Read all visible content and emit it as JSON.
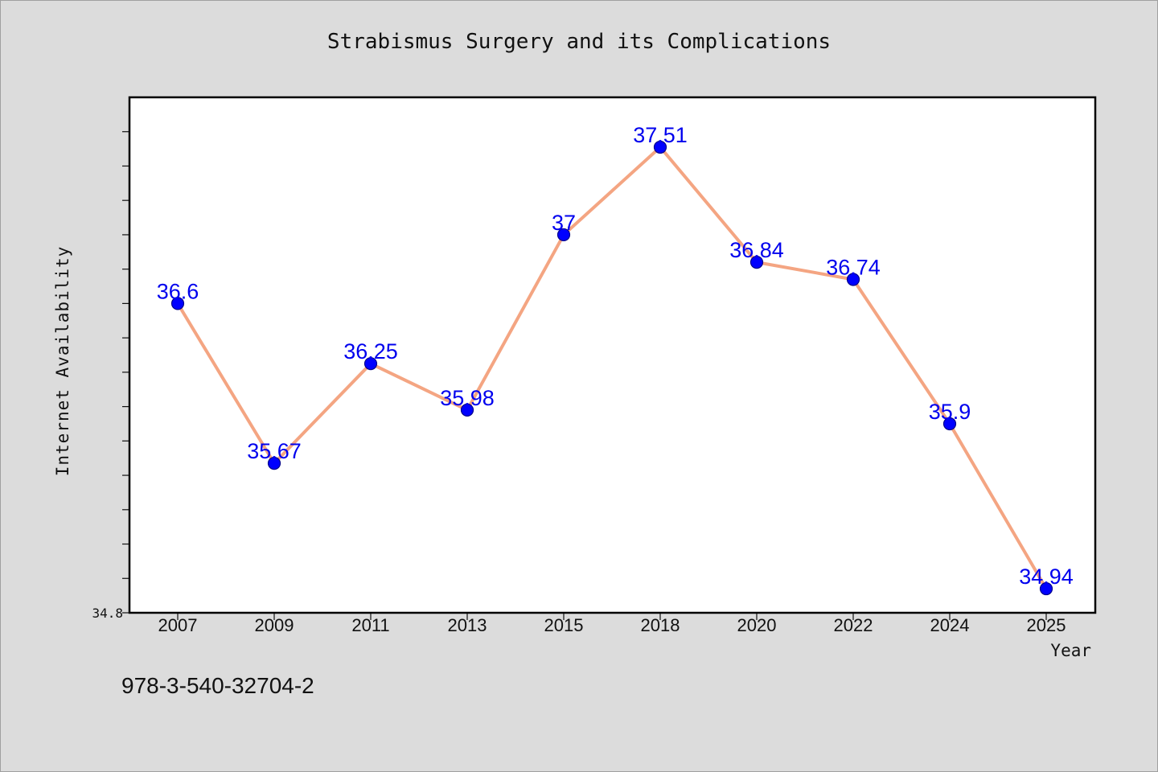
{
  "footer_code": "978-3-540-32704-2",
  "chart_data": {
    "type": "line",
    "title": "Strabismus Surgery and its Complications",
    "xlabel": "Year",
    "ylabel": "Internet Availability",
    "categories": [
      "2007",
      "2009",
      "2011",
      "2013",
      "2015",
      "2018",
      "2020",
      "2022",
      "2024",
      "2025"
    ],
    "series": [
      {
        "values": [
          36.6,
          35.67,
          36.25,
          35.98,
          37,
          37.51,
          36.84,
          36.74,
          35.9,
          34.94
        ],
        "data_labels": [
          "36.6",
          "35.67",
          "36.25",
          "35.98",
          "37",
          "37.51",
          "36.84",
          "36.74",
          "35.9",
          "34.94"
        ]
      }
    ],
    "ylim": [
      34.8,
      37.8
    ],
    "y_tick_labels": [
      "34.8"
    ],
    "y_minor_step": 0.2,
    "grid": false,
    "colors": {
      "line": "#f4a582",
      "marker": "#0000ff",
      "marker_edge": "#00008b",
      "data_label": "#0000ee",
      "plot_bg": "#ffffff",
      "figure_bg": "#dcdcdc"
    }
  }
}
